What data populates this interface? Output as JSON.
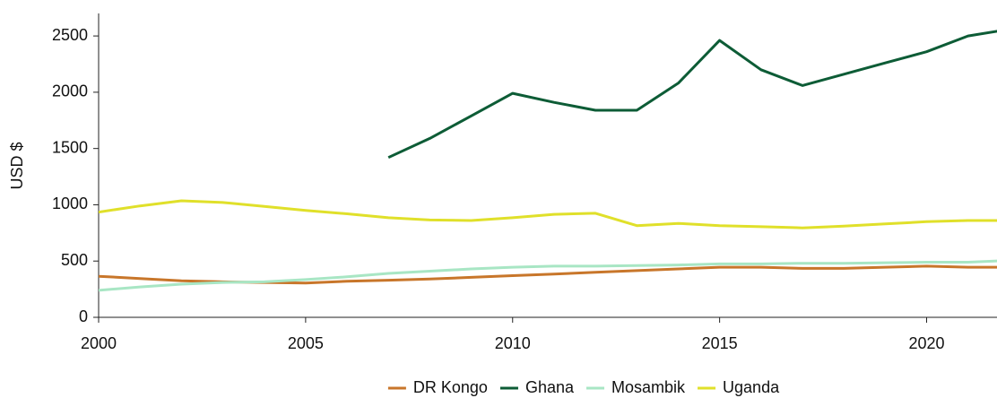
{
  "chart_data": {
    "type": "line",
    "y_label": "USD $",
    "x": [
      2000,
      2001,
      2002,
      2003,
      2004,
      2005,
      2006,
      2007,
      2008,
      2009,
      2010,
      2011,
      2012,
      2013,
      2014,
      2015,
      2016,
      2017,
      2018,
      2019,
      2020,
      2021,
      2022
    ],
    "series": [
      {
        "name": "DR Kongo",
        "color": "#c8762a",
        "values": [
          365,
          345,
          325,
          315,
          310,
          305,
          320,
          330,
          340,
          355,
          370,
          385,
          400,
          415,
          430,
          445,
          445,
          435,
          435,
          445,
          455,
          445,
          445
        ]
      },
      {
        "name": "Ghana",
        "color": "#0d5c36",
        "values": [
          null,
          null,
          null,
          null,
          null,
          null,
          null,
          1420,
          1590,
          1790,
          1990,
          1910,
          1840,
          1840,
          2080,
          2460,
          2200,
          2060,
          2160,
          2260,
          2360,
          2500,
          2560
        ]
      },
      {
        "name": "Mosambik",
        "color": "#a8e6c4",
        "values": [
          240,
          270,
          295,
          310,
          315,
          335,
          360,
          390,
          410,
          430,
          445,
          455,
          455,
          460,
          465,
          475,
          475,
          480,
          480,
          485,
          490,
          490,
          505
        ]
      },
      {
        "name": "Uganda",
        "color": "#e0e02a",
        "values": [
          935,
          990,
          1035,
          1020,
          985,
          950,
          920,
          885,
          865,
          860,
          885,
          915,
          925,
          815,
          835,
          815,
          805,
          795,
          810,
          830,
          850,
          860,
          860
        ]
      }
    ],
    "xlim": [
      2000,
      2021.7
    ],
    "xticks": [
      2000,
      2005,
      2010,
      2015,
      2020
    ],
    "ylim": [
      0,
      2700
    ],
    "yticks": [
      0,
      500,
      1000,
      1500,
      2000,
      2500
    ],
    "legend": "bottom"
  }
}
